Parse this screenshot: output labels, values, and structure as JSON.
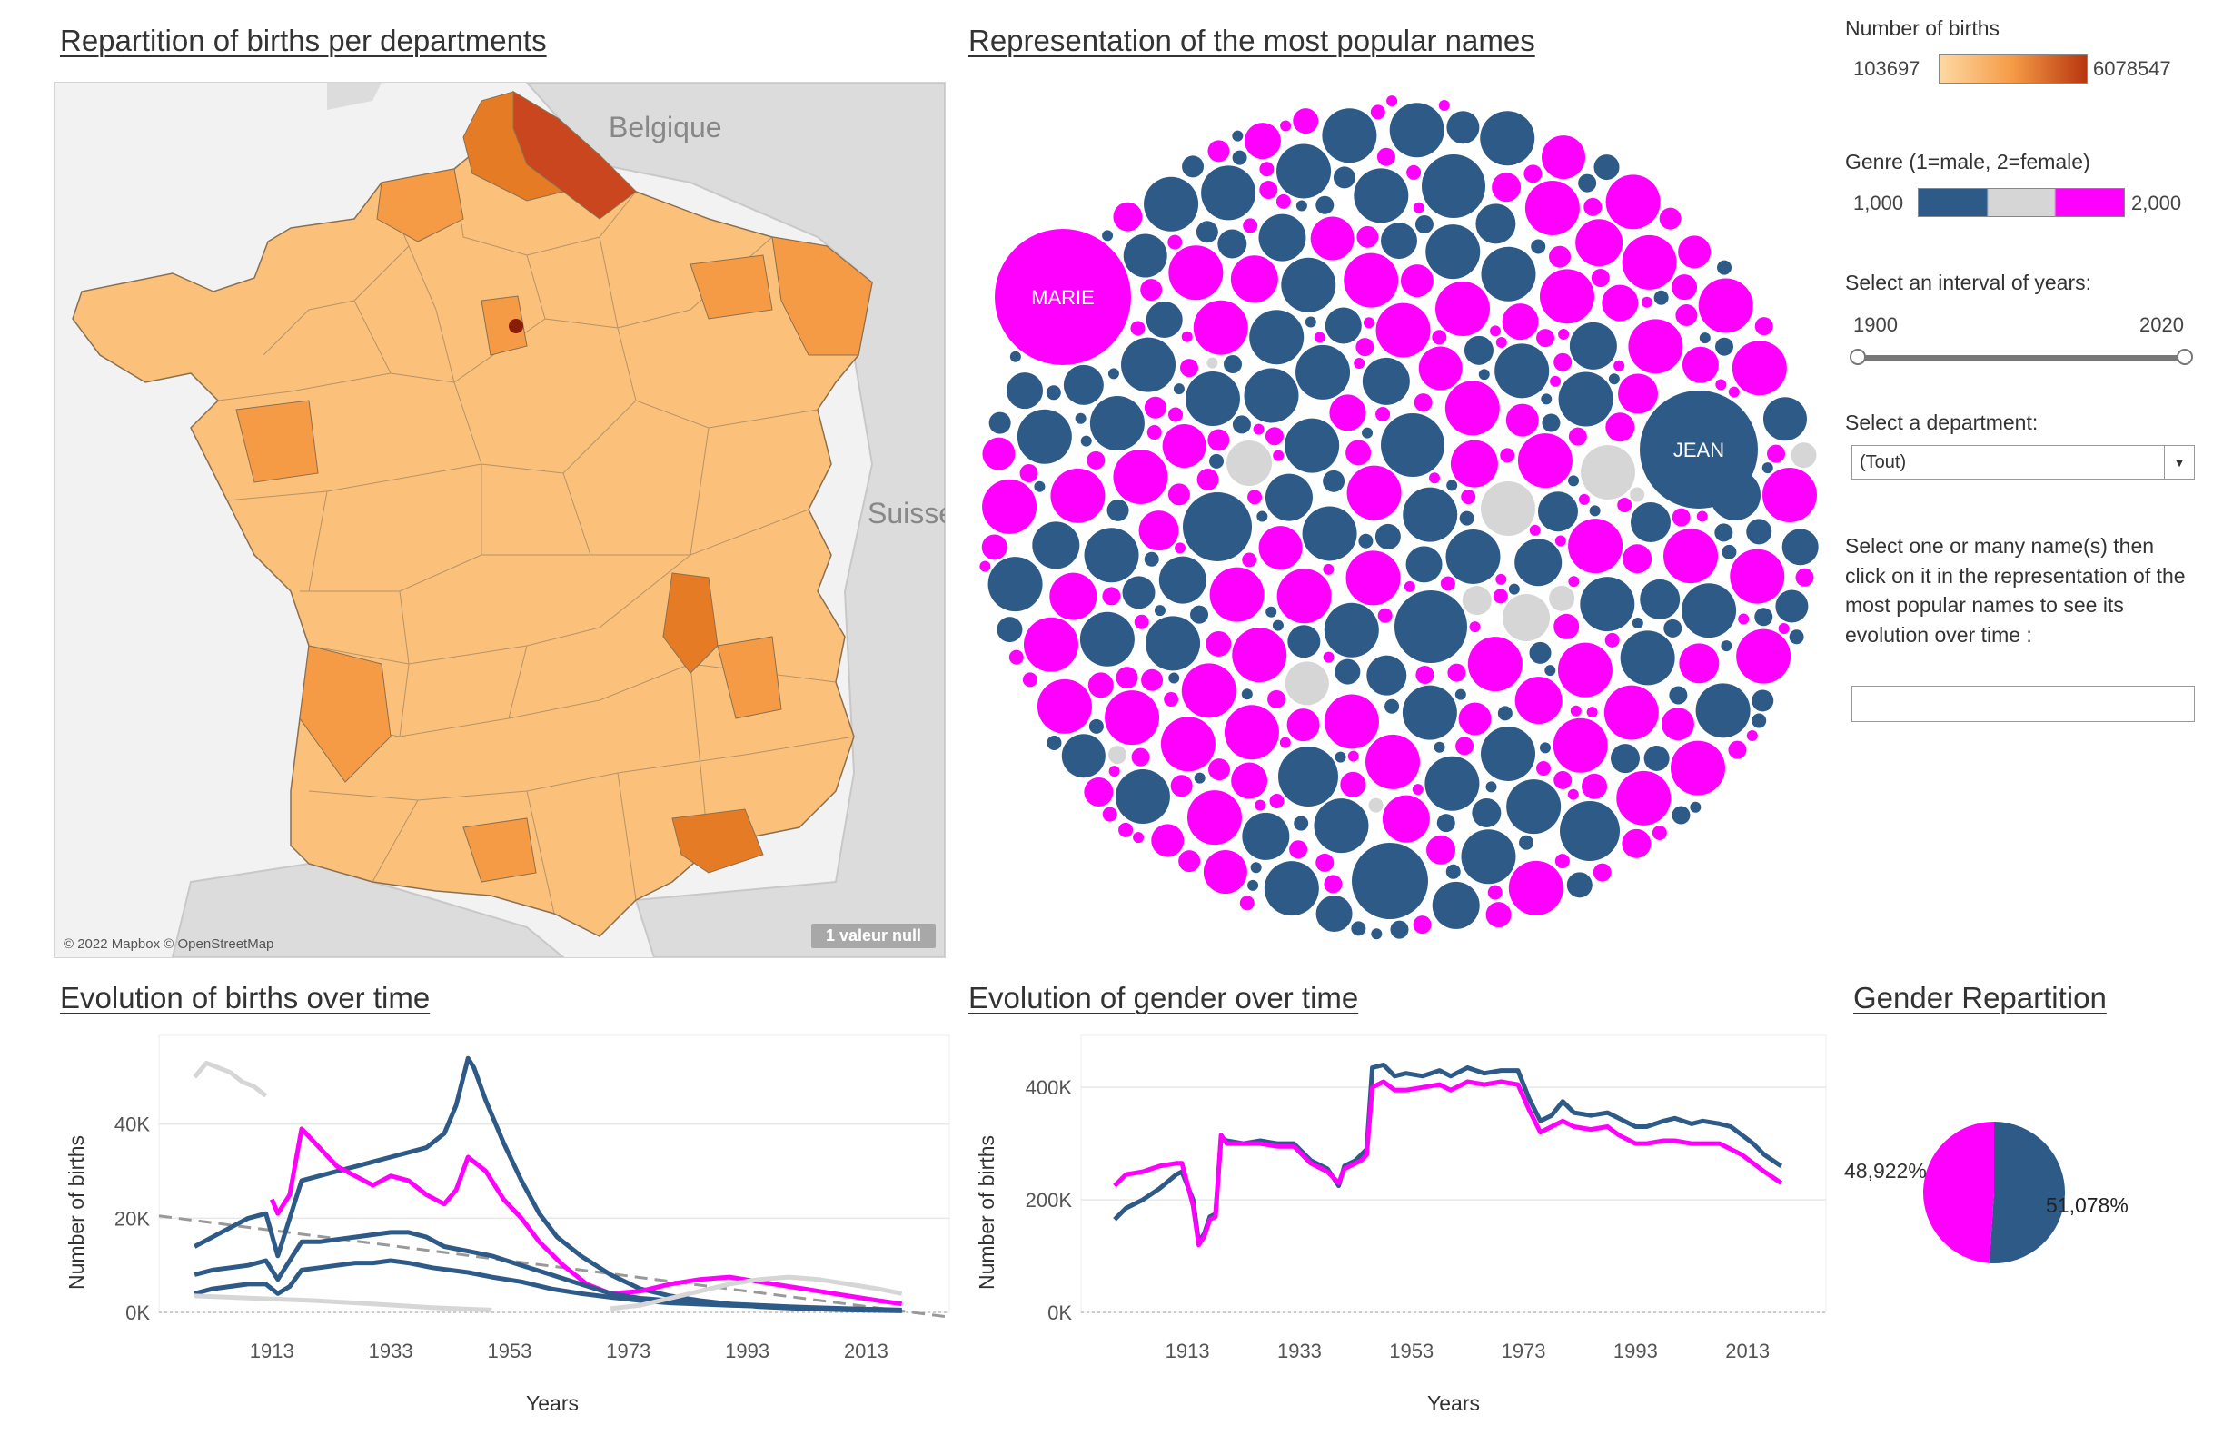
{
  "titles": {
    "map": "Repartition of births per departments",
    "bubbles": "Representation of the most popular names",
    "births_time": "Evolution of births over time",
    "gender_time": "Evolution of gender over time",
    "gender_rep": "Gender Repartition"
  },
  "map": {
    "labels": {
      "belgium": "Belgique",
      "switzerland": "Suisse"
    },
    "attribution": "© 2022 Mapbox © OpenStreetMap",
    "null_badge": "1 valeur null",
    "colors": {
      "light": "#fbc07a",
      "mid": "#f59a45",
      "dark": "#e67b26",
      "darkest": "#c9461f",
      "paris": "#8a1d08"
    }
  },
  "bubbles": {
    "labels": {
      "marie": "MARIE",
      "jean": "JEAN"
    },
    "colors": {
      "female": "#ff00ff",
      "male": "#2e5a88",
      "neutral": "#d6d6d6"
    }
  },
  "controls": {
    "births_legend": {
      "title": "Number of births",
      "min": "103697",
      "max": "6078547"
    },
    "genre_legend": {
      "title": "Genre (1=male, 2=female)",
      "min": "1,000",
      "max": "2,000"
    },
    "years": {
      "label": "Select an interval of years:",
      "start": "1900",
      "end": "2020"
    },
    "department": {
      "label": "Select a department:",
      "value": "(Tout)"
    },
    "names": {
      "label": "Select one or many name(s) then click on it in the representation of the most popular names to see its evolution over time :",
      "value": ""
    }
  },
  "chart_data": [
    {
      "type": "line",
      "title": "Evolution of births over time",
      "xlabel": "Years",
      "ylabel": "Number of births",
      "xticks": [
        1913,
        1933,
        1953,
        1973,
        1993,
        2013
      ],
      "yticks": [
        "0K",
        "20K",
        "40K"
      ],
      "xlim": [
        1894,
        2027
      ],
      "ylim": [
        0,
        55000
      ],
      "series": [
        {
          "color": "#2e5a88",
          "x": [
            1900,
            1903,
            1906,
            1909,
            1912,
            1914,
            1916,
            1918,
            1921,
            1924,
            1927,
            1930,
            1933,
            1936,
            1939,
            1942,
            1944,
            1946,
            1947,
            1949,
            1952,
            1955,
            1958,
            1961,
            1965,
            1970,
            1975,
            1980,
            1985,
            1990,
            1995,
            2000,
            2005,
            2010,
            2015,
            2019
          ],
          "y": [
            14000,
            16000,
            18000,
            20000,
            21000,
            12000,
            20000,
            28000,
            29000,
            30000,
            31000,
            32000,
            33000,
            34000,
            35000,
            38000,
            44000,
            54000,
            52000,
            45000,
            36000,
            28000,
            21000,
            16000,
            12000,
            8000,
            5000,
            3500,
            2500,
            1800,
            1200,
            900,
            700,
            500,
            400,
            300
          ]
        },
        {
          "color": "#ff00ff",
          "x": [
            1913,
            1914,
            1916,
            1918,
            1921,
            1924,
            1927,
            1930,
            1933,
            1936,
            1939,
            1942,
            1944,
            1946,
            1949,
            1952,
            1955,
            1958,
            1962,
            1966,
            1970,
            1975,
            1980,
            1985,
            1990,
            1995,
            2000,
            2005,
            2010,
            2015,
            2019
          ],
          "y": [
            24000,
            21000,
            25000,
            39000,
            35000,
            31000,
            29000,
            27000,
            29000,
            28000,
            25000,
            23000,
            26000,
            33000,
            30000,
            24000,
            20000,
            15000,
            10000,
            6000,
            4000,
            4500,
            6000,
            7000,
            7500,
            6500,
            5500,
            4500,
            3500,
            2500,
            1800
          ]
        },
        {
          "color": "#2e5a88",
          "x": [
            1900,
            1903,
            1906,
            1909,
            1912,
            1914,
            1916,
            1918,
            1921,
            1924,
            1927,
            1930,
            1933,
            1936,
            1939,
            1942,
            1946,
            1950,
            1955,
            1960,
            1965,
            1970,
            1975,
            1980,
            1990,
            2000,
            2010,
            2019
          ],
          "y": [
            8000,
            9000,
            9500,
            10000,
            11000,
            7000,
            11000,
            15000,
            15000,
            15500,
            16000,
            16500,
            17000,
            17000,
            16000,
            14000,
            13000,
            12000,
            10000,
            8000,
            6000,
            4000,
            3000,
            2500,
            1800,
            1200,
            800,
            500
          ]
        },
        {
          "color": "#2e5a88",
          "x": [
            1900,
            1903,
            1906,
            1909,
            1912,
            1914,
            1916,
            1918,
            1921,
            1924,
            1927,
            1930,
            1933,
            1936,
            1940,
            1946,
            1950,
            1955,
            1960,
            1965,
            1970,
            1975,
            1980,
            1990,
            2000,
            2010,
            2019
          ],
          "y": [
            4000,
            5000,
            5500,
            6000,
            6000,
            4000,
            5500,
            9000,
            9500,
            10000,
            10500,
            10500,
            11000,
            10500,
            9500,
            8500,
            7500,
            6500,
            5000,
            4000,
            3200,
            2500,
            2000,
            1500,
            1100,
            700,
            400
          ]
        },
        {
          "color": "#d6d6d6",
          "x": [
            1900,
            1902,
            1904,
            1906,
            1908,
            1910,
            1912
          ],
          "y": [
            50000,
            53000,
            52000,
            51000,
            49000,
            48000,
            46000
          ]
        },
        {
          "color": "#d6d6d6",
          "x": [
            1900,
            1910,
            1920,
            1930,
            1940,
            1950
          ],
          "y": [
            3500,
            3000,
            2500,
            1800,
            1000,
            500
          ]
        },
        {
          "color": "#d6d6d6",
          "x": [
            1970,
            1975,
            1980,
            1985,
            1990,
            1995,
            2000,
            2005,
            2010,
            2015,
            2019
          ],
          "y": [
            800,
            1500,
            3000,
            4500,
            6000,
            7000,
            7500,
            7000,
            6000,
            5000,
            4000
          ]
        }
      ],
      "trend": {
        "x": [
          1894,
          2027
        ],
        "y": [
          20500,
          -1000
        ]
      }
    },
    {
      "type": "line",
      "title": "Evolution of gender over time",
      "xlabel": "Years",
      "ylabel": "Number of births",
      "xticks": [
        1913,
        1933,
        1953,
        1973,
        1993,
        2013
      ],
      "yticks": [
        "0K",
        "200K",
        "400K"
      ],
      "xlim": [
        1894,
        2027
      ],
      "ylim": [
        0,
        460000
      ],
      "series": [
        {
          "color": "#2e5a88",
          "name": "male",
          "x": [
            1900,
            1902,
            1905,
            1908,
            1911,
            1912,
            1914,
            1915,
            1916,
            1917,
            1918,
            1919,
            1920,
            1923,
            1926,
            1929,
            1932,
            1935,
            1938,
            1940,
            1941,
            1942,
            1943,
            1944,
            1945,
            1946,
            1948,
            1950,
            1952,
            1955,
            1958,
            1960,
            1963,
            1966,
            1969,
            1972,
            1974,
            1976,
            1978,
            1980,
            1982,
            1985,
            1988,
            1990,
            1993,
            1995,
            1998,
            2000,
            2003,
            2005,
            2008,
            2010,
            2012,
            2014,
            2016,
            2019
          ],
          "y": [
            165000,
            185000,
            200000,
            220000,
            245000,
            250000,
            200000,
            125000,
            140000,
            170000,
            175000,
            310000,
            305000,
            300000,
            305000,
            300000,
            300000,
            270000,
            255000,
            225000,
            260000,
            265000,
            270000,
            280000,
            290000,
            435000,
            440000,
            420000,
            425000,
            420000,
            430000,
            420000,
            435000,
            425000,
            430000,
            430000,
            380000,
            340000,
            350000,
            375000,
            355000,
            350000,
            355000,
            345000,
            330000,
            330000,
            340000,
            345000,
            335000,
            340000,
            335000,
            330000,
            315000,
            300000,
            280000,
            260000
          ]
        },
        {
          "color": "#ff00ff",
          "name": "female",
          "x": [
            1900,
            1902,
            1905,
            1908,
            1911,
            1912,
            1914,
            1915,
            1916,
            1917,
            1918,
            1919,
            1920,
            1923,
            1926,
            1929,
            1932,
            1935,
            1938,
            1940,
            1941,
            1942,
            1943,
            1944,
            1945,
            1946,
            1948,
            1950,
            1952,
            1955,
            1958,
            1960,
            1963,
            1966,
            1969,
            1972,
            1974,
            1976,
            1978,
            1980,
            1982,
            1985,
            1988,
            1990,
            1993,
            1995,
            1998,
            2000,
            2003,
            2005,
            2008,
            2010,
            2012,
            2014,
            2016,
            2019
          ],
          "y": [
            225000,
            245000,
            250000,
            260000,
            265000,
            265000,
            190000,
            120000,
            135000,
            165000,
            170000,
            315000,
            300000,
            300000,
            300000,
            295000,
            295000,
            265000,
            250000,
            230000,
            255000,
            260000,
            265000,
            270000,
            280000,
            400000,
            410000,
            395000,
            395000,
            400000,
            405000,
            395000,
            410000,
            405000,
            410000,
            405000,
            360000,
            320000,
            330000,
            340000,
            330000,
            325000,
            330000,
            315000,
            300000,
            300000,
            305000,
            305000,
            300000,
            300000,
            300000,
            290000,
            280000,
            265000,
            250000,
            230000
          ]
        }
      ]
    },
    {
      "type": "pie",
      "title": "Gender Repartition",
      "slices": [
        {
          "label": "51,078%",
          "value": 51.078,
          "color": "#2e5a88"
        },
        {
          "label": "48,922%",
          "value": 48.922,
          "color": "#ff00ff"
        }
      ]
    }
  ]
}
